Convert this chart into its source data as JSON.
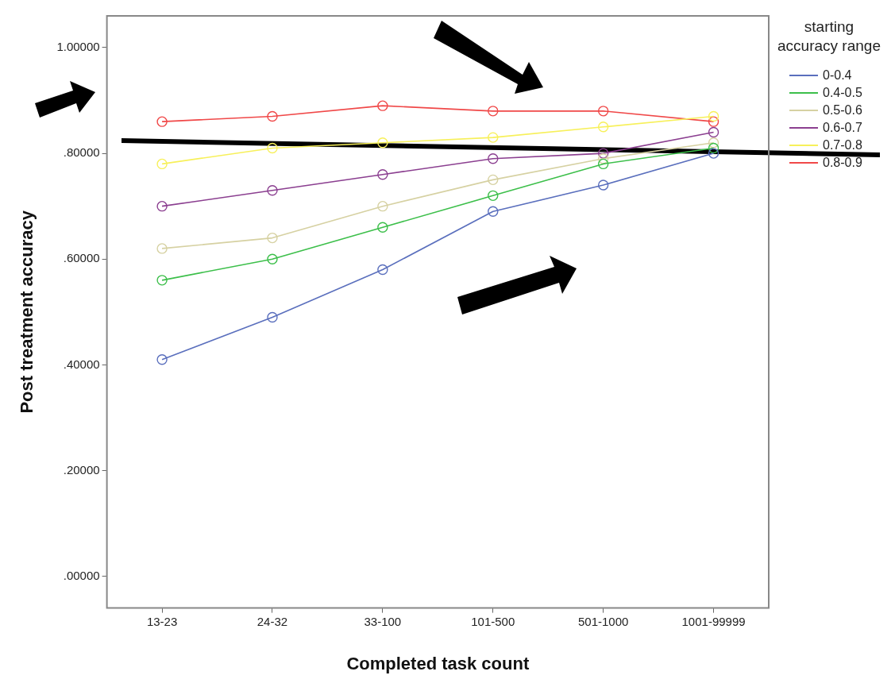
{
  "chart_data": {
    "type": "line",
    "xlabel": "Completed task count",
    "ylabel": "Post treatment accuracy",
    "legend_title": "starting accuracy range",
    "legend": "top right",
    "marker": "circle",
    "line_style": "solid",
    "grid": false,
    "categories": [
      "13-23",
      "24-32",
      "33-100",
      "101-500",
      "501-1000",
      "1001-99999"
    ],
    "ylim": [
      -0.06,
      1.06
    ],
    "yticks": [
      {
        "value": 0,
        "label": ".00000"
      },
      {
        "value": 0.2,
        "label": ".20000"
      },
      {
        "value": 0.4,
        "label": ".40000"
      },
      {
        "value": 0.6,
        "label": ".60000"
      },
      {
        "value": 0.8,
        "label": ".80000"
      },
      {
        "value": 1,
        "label": "1.00000"
      }
    ],
    "series": [
      {
        "name": "0-0.4",
        "color": "#5a6fbd",
        "values": [
          0.41,
          0.49,
          0.58,
          0.69,
          0.74,
          0.8
        ]
      },
      {
        "name": "0.4-0.5",
        "color": "#3cbf4a",
        "values": [
          0.56,
          0.6,
          0.66,
          0.72,
          0.78,
          0.81
        ]
      },
      {
        "name": "0.5-0.6",
        "color": "#d6d1a2",
        "values": [
          0.62,
          0.64,
          0.7,
          0.75,
          0.79,
          0.82
        ]
      },
      {
        "name": "0.6-0.7",
        "color": "#8b3f90",
        "values": [
          0.7,
          0.73,
          0.76,
          0.79,
          0.8,
          0.84
        ]
      },
      {
        "name": "0.7-0.8",
        "color": "#f7f05a",
        "values": [
          0.78,
          0.81,
          0.82,
          0.83,
          0.85,
          0.87
        ]
      },
      {
        "name": "0.8-0.9",
        "color": "#f04848",
        "values": [
          0.86,
          0.87,
          0.89,
          0.88,
          0.88,
          0.86
        ]
      }
    ]
  }
}
